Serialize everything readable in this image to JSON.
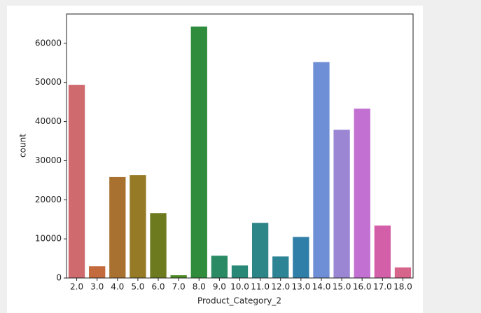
{
  "chart_data": {
    "type": "bar",
    "xlabel": "Product_Category_2",
    "ylabel": "count",
    "categories": [
      "2.0",
      "3.0",
      "4.0",
      "5.0",
      "6.0",
      "7.0",
      "8.0",
      "9.0",
      "10.0",
      "11.0",
      "12.0",
      "13.0",
      "14.0",
      "15.0",
      "16.0",
      "17.0",
      "18.0"
    ],
    "values": [
      49400,
      3000,
      25800,
      26300,
      16600,
      700,
      64300,
      5700,
      3200,
      14100,
      5500,
      10500,
      55200,
      37900,
      43300,
      13400,
      2700
    ],
    "colors": [
      "#cf6a6f",
      "#c36b3c",
      "#a8712f",
      "#967a25",
      "#6e7a1e",
      "#4c8a26",
      "#2f8c3d",
      "#2a8a64",
      "#2a8877",
      "#2c8587",
      "#2d8494",
      "#2f7fa8",
      "#6e8fd6",
      "#9b86d4",
      "#c270d1",
      "#d35fa9",
      "#d7648a"
    ],
    "ylim": [
      0,
      67500
    ],
    "yticks": [
      0,
      10000,
      20000,
      30000,
      40000,
      50000,
      60000
    ]
  }
}
